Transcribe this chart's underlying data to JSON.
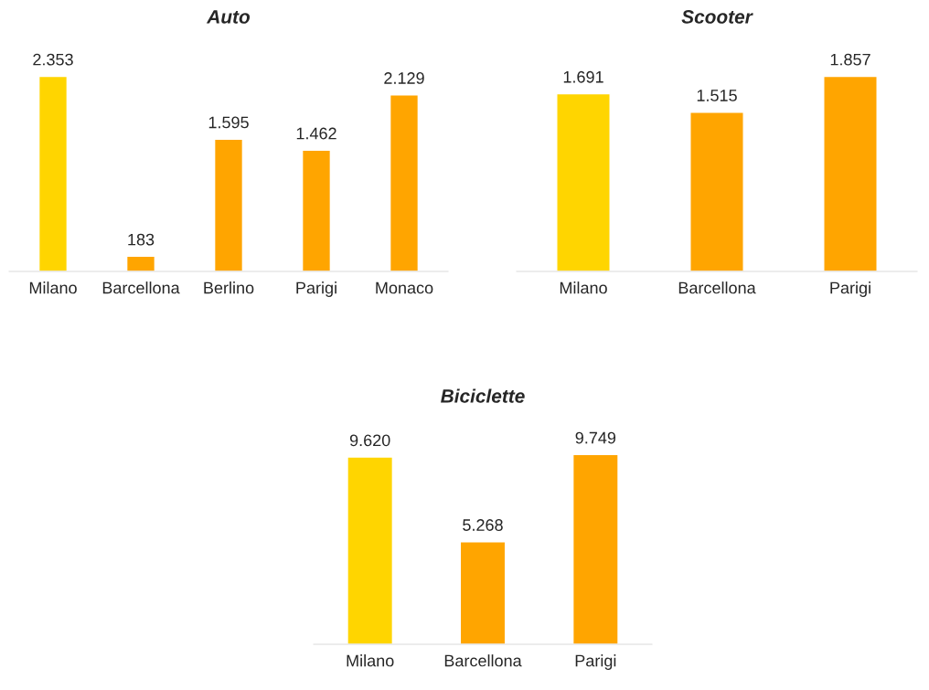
{
  "chart_data": [
    {
      "type": "bar",
      "title": "Auto",
      "categories": [
        "Milano",
        "Barcellona",
        "Berlino",
        "Parigi",
        "Monaco"
      ],
      "values": [
        2353,
        183,
        1595,
        1462,
        2129
      ],
      "value_labels": [
        "2.353",
        "183",
        "1.595",
        "1.462",
        "2.129"
      ],
      "colors": [
        "#ffd500",
        "#ffa500",
        "#ffa500",
        "#ffa500",
        "#ffa500"
      ],
      "tick_labels": "x",
      "grid": false,
      "legend": false
    },
    {
      "type": "bar",
      "title": "Scooter",
      "categories": [
        "Milano",
        "Barcellona",
        "Parigi"
      ],
      "values": [
        1691,
        1515,
        1857
      ],
      "value_labels": [
        "1.691",
        "1.515",
        "1.857"
      ],
      "colors": [
        "#ffd500",
        "#ffa500",
        "#ffa500"
      ],
      "tick_labels": "x",
      "grid": false,
      "legend": false
    },
    {
      "type": "bar",
      "title": "Biciclette",
      "categories": [
        "Milano",
        "Barcellona",
        "Parigi"
      ],
      "values": [
        9620,
        5268,
        9749
      ],
      "value_labels": [
        "9.620",
        "5.268",
        "9.749"
      ],
      "colors": [
        "#ffd500",
        "#ffa500",
        "#ffa500"
      ],
      "tick_labels": "x",
      "grid": false,
      "legend": false
    }
  ]
}
